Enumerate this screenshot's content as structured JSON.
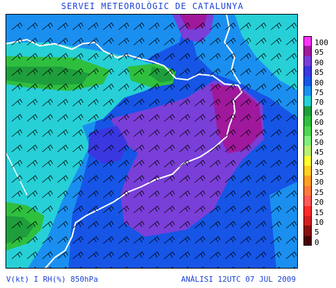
{
  "header": {
    "title": "SERVEI METEOROLÒGIC DE CATALUNYA"
  },
  "footer": {
    "variables": "V(kt) I RH(%) 850hPa",
    "analysis": "ANÀLISI 12UTC 07 JUL 2009"
  },
  "legend": {
    "items": [
      {
        "label": "100",
        "color": "#ff33ff"
      },
      {
        "label": "95",
        "color": "#a0199c"
      },
      {
        "label": "90",
        "color": "#7a3fd8"
      },
      {
        "label": "85",
        "color": "#3a37e0"
      },
      {
        "label": "80",
        "color": "#1655e6"
      },
      {
        "label": "75",
        "color": "#1a8ff0"
      },
      {
        "label": "70",
        "color": "#26d0d6"
      },
      {
        "label": "65",
        "color": "#1e9e3c"
      },
      {
        "label": "60",
        "color": "#2fbf3f"
      },
      {
        "label": "55",
        "color": "#4fd84f"
      },
      {
        "label": "50",
        "color": "#7ff07a"
      },
      {
        "label": "45",
        "color": "#b8f070"
      },
      {
        "label": "40",
        "color": "#ffff30"
      },
      {
        "label": "35",
        "color": "#ffd020"
      },
      {
        "label": "30",
        "color": "#ffa020"
      },
      {
        "label": "25",
        "color": "#ff7c3c"
      },
      {
        "label": "20",
        "color": "#ff5a5a"
      },
      {
        "label": "15",
        "color": "#ff2a2a"
      },
      {
        "label": "10",
        "color": "#d42020"
      },
      {
        "label": "5",
        "color": "#8a1010"
      },
      {
        "label": "0",
        "color": "#4a0606"
      }
    ]
  },
  "map": {
    "base_color": "#1655e6",
    "field_colors": {
      "rh90": "#7a3fd8",
      "rh95": "#a0199c",
      "rh85": "#3a37e0",
      "rh75": "#1a8ff0",
      "rh70": "#26d0d6",
      "rh65": "#1e9e3c",
      "rh60": "#2fbf3f",
      "rh55": "#4fd84f"
    },
    "coast_color": "#ffffff",
    "barb_color": "#000000"
  }
}
